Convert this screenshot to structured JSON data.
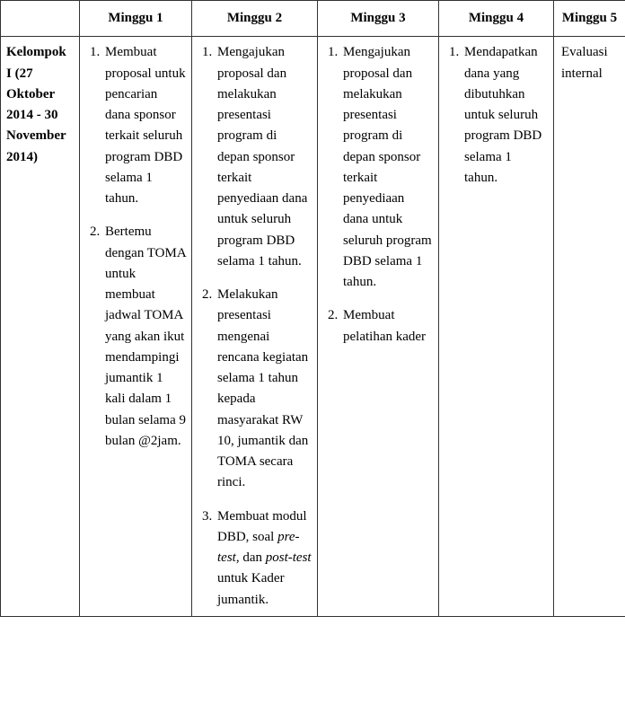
{
  "headers": {
    "empty": "",
    "col1": "Minggu 1",
    "col2": "Minggu 2",
    "col3": "Minggu 3",
    "col4": "Minggu 4",
    "col5": "Minggu 5"
  },
  "group": {
    "label": "Kelompok I (27 Oktober 2014 - 30 November 2014)"
  },
  "week1": {
    "items": [
      "Membuat proposal untuk pencarian dana sponsor terkait seluruh program DBD selama 1 tahun.",
      "Bertemu dengan TOMA untuk membuat jadwal TOMA yang akan ikut mendampingi jumantik 1 kali dalam 1 bulan selama 9 bulan @2jam."
    ]
  },
  "week2": {
    "items": [
      "Mengajukan proposal dan melakukan presentasi program di depan sponsor terkait penyediaan dana untuk seluruh program DBD selama 1 tahun.",
      "Melakukan presentasi mengenai rencana kegiatan selama 1 tahun kepada masyarakat RW 10, jumantik dan TOMA secara rinci."
    ],
    "item3_pre": "Membuat modul DBD, soal ",
    "item3_em1": "pre-test",
    "item3_mid": ", dan ",
    "item3_em2": "post-test",
    "item3_post": " untuk Kader jumantik."
  },
  "week3": {
    "items": [
      "Mengajukan proposal dan melakukan presentasi program di depan sponsor terkait penyediaan dana untuk seluruh program DBD selama 1 tahun.",
      "Membuat pelatihan kader"
    ]
  },
  "week4": {
    "items": [
      "Mendapatkan dana yang dibutuhkan untuk seluruh program DBD selama 1 tahun."
    ]
  },
  "week5": {
    "text": "Evaluasi internal"
  }
}
